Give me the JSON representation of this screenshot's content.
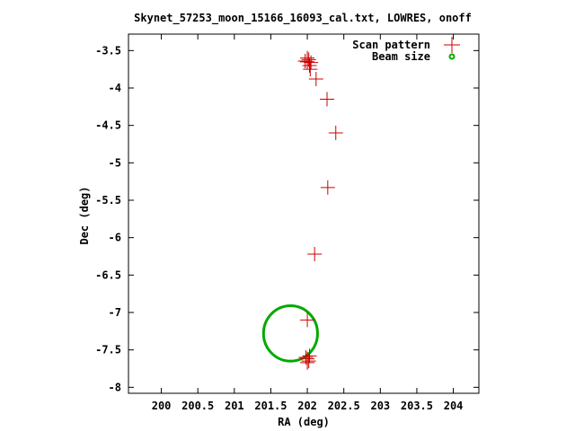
{
  "chart_data": {
    "type": "scatter",
    "title": "Skynet_57253_moon_15166_16093_cal.txt, LOWRES, onoff",
    "xlabel": "RA (deg)",
    "ylabel": "Dec (deg)",
    "xlim": [
      199.55,
      204.35
    ],
    "ylim": [
      -8.08,
      -3.28
    ],
    "xticks": [
      200,
      200.5,
      201,
      201.5,
      202,
      202.5,
      203,
      203.5,
      204
    ],
    "xtick_labels": [
      "200",
      "200.5",
      "201",
      "201.5",
      "202",
      "202.5",
      "203",
      "203.5",
      "204"
    ],
    "yticks": [
      -3.5,
      -4,
      -4.5,
      -5,
      -5.5,
      -6,
      -6.5,
      -7,
      -7.5,
      -8
    ],
    "ytick_labels": [
      "-3.5",
      "-4",
      "-4.5",
      "-5",
      "-5.5",
      "-6",
      "-6.5",
      "-7",
      "-7.5",
      "-8"
    ],
    "grid": false,
    "legend_position": "top-right",
    "series": [
      {
        "name": "Scan pattern",
        "marker": "plus",
        "color": "#cc0000",
        "points": [
          {
            "x": 202.0,
            "y": -3.65
          },
          {
            "x": 202.02,
            "y": -3.62
          },
          {
            "x": 202.05,
            "y": -3.66
          },
          {
            "x": 201.97,
            "y": -3.64
          },
          {
            "x": 202.03,
            "y": -3.7
          },
          {
            "x": 202.0,
            "y": -3.6
          },
          {
            "x": 202.04,
            "y": -3.75
          },
          {
            "x": 202.12,
            "y": -3.88
          },
          {
            "x": 202.27,
            "y": -4.15
          },
          {
            "x": 202.39,
            "y": -4.6
          },
          {
            "x": 202.28,
            "y": -5.33
          },
          {
            "x": 202.1,
            "y": -6.22
          },
          {
            "x": 202.0,
            "y": -7.1
          },
          {
            "x": 202.0,
            "y": -7.62
          },
          {
            "x": 202.02,
            "y": -7.65
          },
          {
            "x": 201.98,
            "y": -7.6
          },
          {
            "x": 202.0,
            "y": -7.67
          },
          {
            "x": 202.03,
            "y": -7.58
          }
        ]
      },
      {
        "name": "Beam size",
        "marker": "circle",
        "color": "#00aa00",
        "center": {
          "x": 201.77,
          "y": -7.28
        },
        "radius_x": 0.37,
        "radius_y": 0.37
      }
    ]
  }
}
